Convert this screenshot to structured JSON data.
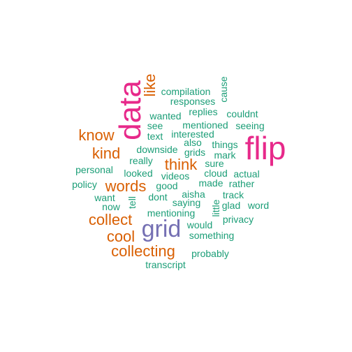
{
  "wordcloud": {
    "words": [
      {
        "text": "flip",
        "color": "#e7298a",
        "rotated": false
      },
      {
        "text": "data",
        "color": "#e7298a",
        "rotated": true
      },
      {
        "text": "grid",
        "color": "#7570b3",
        "rotated": false
      },
      {
        "text": "like",
        "color": "#d95f02",
        "rotated": true
      },
      {
        "text": "know",
        "color": "#d95f02",
        "rotated": false
      },
      {
        "text": "kind",
        "color": "#d95f02",
        "rotated": false
      },
      {
        "text": "think",
        "color": "#d95f02",
        "rotated": false
      },
      {
        "text": "words",
        "color": "#d95f02",
        "rotated": false
      },
      {
        "text": "collect",
        "color": "#d95f02",
        "rotated": false
      },
      {
        "text": "cool",
        "color": "#d95f02",
        "rotated": false
      },
      {
        "text": "collecting",
        "color": "#d95f02",
        "rotated": false
      },
      {
        "text": "compilation",
        "color": "#1b9e77",
        "rotated": false
      },
      {
        "text": "responses",
        "color": "#1b9e77",
        "rotated": false
      },
      {
        "text": "cause",
        "color": "#1b9e77",
        "rotated": true
      },
      {
        "text": "wanted",
        "color": "#1b9e77",
        "rotated": false
      },
      {
        "text": "replies",
        "color": "#1b9e77",
        "rotated": false
      },
      {
        "text": "couldnt",
        "color": "#1b9e77",
        "rotated": false
      },
      {
        "text": "see",
        "color": "#1b9e77",
        "rotated": false
      },
      {
        "text": "mentioned",
        "color": "#1b9e77",
        "rotated": false
      },
      {
        "text": "seeing",
        "color": "#1b9e77",
        "rotated": false
      },
      {
        "text": "text",
        "color": "#1b9e77",
        "rotated": false
      },
      {
        "text": "interested",
        "color": "#1b9e77",
        "rotated": false
      },
      {
        "text": "also",
        "color": "#1b9e77",
        "rotated": false
      },
      {
        "text": "things",
        "color": "#1b9e77",
        "rotated": false
      },
      {
        "text": "downside",
        "color": "#1b9e77",
        "rotated": false
      },
      {
        "text": "grids",
        "color": "#1b9e77",
        "rotated": false
      },
      {
        "text": "mark",
        "color": "#1b9e77",
        "rotated": false
      },
      {
        "text": "really",
        "color": "#1b9e77",
        "rotated": false
      },
      {
        "text": "sure",
        "color": "#1b9e77",
        "rotated": false
      },
      {
        "text": "personal",
        "color": "#1b9e77",
        "rotated": false
      },
      {
        "text": "looked",
        "color": "#1b9e77",
        "rotated": false
      },
      {
        "text": "cloud",
        "color": "#1b9e77",
        "rotated": false
      },
      {
        "text": "actual",
        "color": "#1b9e77",
        "rotated": false
      },
      {
        "text": "videos",
        "color": "#1b9e77",
        "rotated": false
      },
      {
        "text": "made",
        "color": "#1b9e77",
        "rotated": false
      },
      {
        "text": "rather",
        "color": "#1b9e77",
        "rotated": false
      },
      {
        "text": "policy",
        "color": "#1b9e77",
        "rotated": false
      },
      {
        "text": "good",
        "color": "#1b9e77",
        "rotated": false
      },
      {
        "text": "aisha",
        "color": "#1b9e77",
        "rotated": false
      },
      {
        "text": "track",
        "color": "#1b9e77",
        "rotated": false
      },
      {
        "text": "want",
        "color": "#1b9e77",
        "rotated": false
      },
      {
        "text": "dont",
        "color": "#1b9e77",
        "rotated": false
      },
      {
        "text": "tell",
        "color": "#1b9e77",
        "rotated": true
      },
      {
        "text": "saying",
        "color": "#1b9e77",
        "rotated": false
      },
      {
        "text": "little",
        "color": "#1b9e77",
        "rotated": true
      },
      {
        "text": "glad",
        "color": "#1b9e77",
        "rotated": false
      },
      {
        "text": "word",
        "color": "#1b9e77",
        "rotated": false
      },
      {
        "text": "now",
        "color": "#1b9e77",
        "rotated": false
      },
      {
        "text": "mentioning",
        "color": "#1b9e77",
        "rotated": false
      },
      {
        "text": "privacy",
        "color": "#1b9e77",
        "rotated": false
      },
      {
        "text": "would",
        "color": "#1b9e77",
        "rotated": false
      },
      {
        "text": "something",
        "color": "#1b9e77",
        "rotated": false
      },
      {
        "text": "probably",
        "color": "#1b9e77",
        "rotated": false
      },
      {
        "text": "transcript",
        "color": "#1b9e77",
        "rotated": false
      }
    ]
  }
}
